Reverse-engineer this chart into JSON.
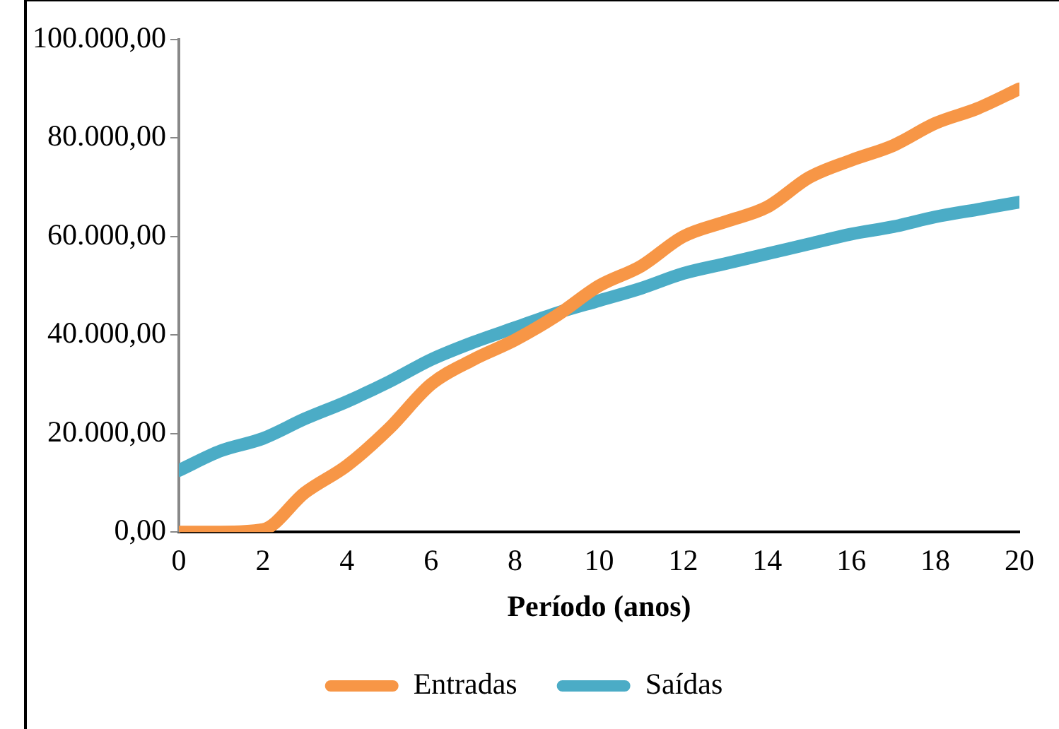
{
  "chart_data": {
    "type": "line",
    "xlabel": "Período (anos)",
    "x": [
      0,
      1,
      2,
      3,
      4,
      5,
      6,
      7,
      8,
      9,
      10,
      11,
      12,
      13,
      14,
      15,
      16,
      17,
      18,
      19,
      20
    ],
    "series": [
      {
        "name": "Entradas",
        "color": "#f79646",
        "values": [
          0,
          0,
          500,
          8000,
          13500,
          21000,
          30000,
          35000,
          39000,
          44000,
          50000,
          54000,
          60000,
          63000,
          66000,
          72000,
          75500,
          78500,
          83000,
          86000,
          90000
        ]
      },
      {
        "name": "Saídas",
        "color": "#4bacc6",
        "values": [
          12500,
          16500,
          19000,
          23000,
          26500,
          30500,
          35000,
          38500,
          41500,
          44500,
          47000,
          49500,
          52500,
          54500,
          56500,
          58500,
          60500,
          62000,
          64000,
          65500,
          67000
        ]
      }
    ],
    "xlim": [
      0,
      20
    ],
    "xticks": [
      0,
      2,
      4,
      6,
      8,
      10,
      12,
      14,
      16,
      18,
      20
    ],
    "ylim": [
      0,
      100000
    ],
    "yticks": [
      {
        "value": 0,
        "label": "0,00"
      },
      {
        "value": 20000,
        "label": "20.000,00"
      },
      {
        "value": 40000,
        "label": "40.000,00"
      },
      {
        "value": 60000,
        "label": "60.000,00"
      },
      {
        "value": 80000,
        "label": "80.000,00"
      },
      {
        "value": 100000,
        "label": "100.000,00"
      }
    ],
    "grid": false,
    "legend": "bottom",
    "marker": "none",
    "line_style": "solid"
  }
}
